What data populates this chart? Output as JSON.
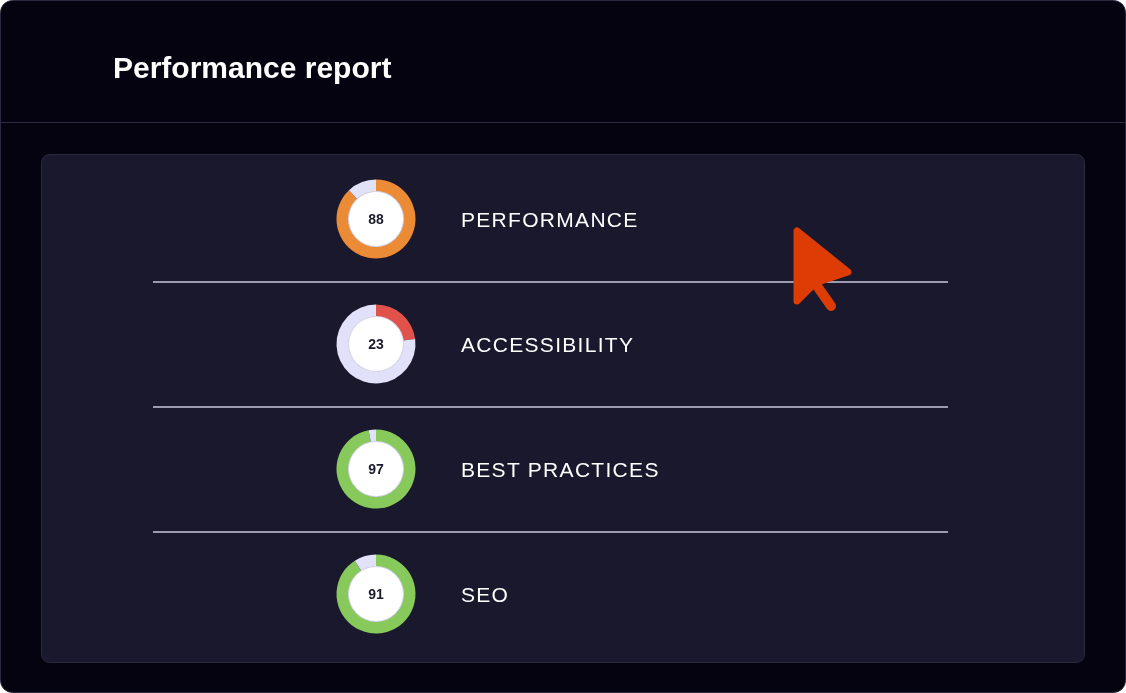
{
  "chart_data": [
    {
      "type": "other",
      "title": "Performance report"
    },
    {
      "type": "donut",
      "title": "PERFORMANCE",
      "categories": [
        null,
        null
      ],
      "values": [
        88,
        12
      ],
      "colors": [
        "#ec8b36",
        "#e1e1fa"
      ],
      "value_labels": [
        "88",
        null
      ]
    },
    {
      "type": "donut",
      "title": "ACCESSIBILITY",
      "categories": [
        null,
        null
      ],
      "values": [
        23,
        77
      ],
      "colors": [
        "#e0524a",
        "#e1e1fa"
      ],
      "value_labels": [
        "23",
        null
      ]
    },
    {
      "type": "donut",
      "title": "BEST PRACTICES",
      "categories": [
        null,
        null
      ],
      "values": [
        97,
        3
      ],
      "colors": [
        "#88c95b",
        "#e1e1fa"
      ],
      "value_labels": [
        "97",
        null
      ]
    },
    {
      "type": "donut",
      "title": "SEO",
      "categories": [
        null,
        null
      ],
      "values": [
        91,
        9
      ],
      "colors": [
        "#88c95b",
        "#e1e1fa"
      ],
      "value_labels": [
        "91",
        null
      ]
    }
  ]
}
